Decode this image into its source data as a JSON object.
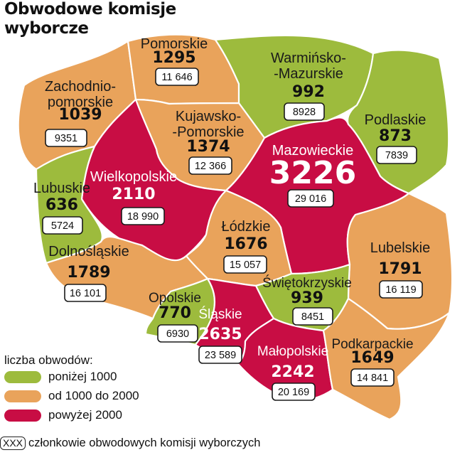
{
  "title_line1": "Obwodowe komisje",
  "title_line2": "wyborcze",
  "colors": {
    "low": "#9dbb3d",
    "mid": "#e9a35b",
    "high": "#c80d44",
    "border": "#ffffff",
    "box_stroke": "#1a1a1a"
  },
  "regions": [
    {
      "id": "zachodniopomorskie",
      "name_lines": [
        "Zachodnio-",
        "pomorskie"
      ],
      "obwody": "1039",
      "komisja": "9351",
      "category": "mid"
    },
    {
      "id": "pomorskie",
      "name_lines": [
        "Pomorskie"
      ],
      "obwody": "1295",
      "komisja": "11 646",
      "category": "mid"
    },
    {
      "id": "warminsko-mazurskie",
      "name_lines": [
        "Warmińsko-",
        "-Mazurskie"
      ],
      "obwody": "992",
      "komisja": "8928",
      "category": "low"
    },
    {
      "id": "podlaskie",
      "name_lines": [
        "Podlaskie"
      ],
      "obwody": "873",
      "komisja": "7839",
      "category": "low"
    },
    {
      "id": "kujawsko-pomorskie",
      "name_lines": [
        "Kujawsko-",
        "-Pomorskie"
      ],
      "obwody": "1374",
      "komisja": "12 366",
      "category": "mid"
    },
    {
      "id": "mazowieckie",
      "name_lines": [
        "Mazowieckie"
      ],
      "obwody": "3226",
      "komisja": "29 016",
      "category": "high"
    },
    {
      "id": "wielkopolskie",
      "name_lines": [
        "Wielkopolskie"
      ],
      "obwody": "2110",
      "komisja": "18 990",
      "category": "high"
    },
    {
      "id": "lubuskie",
      "name_lines": [
        "Lubuskie"
      ],
      "obwody": "636",
      "komisja": "5724",
      "category": "low"
    },
    {
      "id": "lodzkie",
      "name_lines": [
        "Łódzkie"
      ],
      "obwody": "1676",
      "komisja": "15 057",
      "category": "mid"
    },
    {
      "id": "lubelskie",
      "name_lines": [
        "Lubelskie"
      ],
      "obwody": "1791",
      "komisja": "16 119",
      "category": "mid"
    },
    {
      "id": "dolnoslaskie",
      "name_lines": [
        "Dolnośląskie"
      ],
      "obwody": "1789",
      "komisja": "16 101",
      "category": "mid"
    },
    {
      "id": "swietokrzyskie",
      "name_lines": [
        "Świętokrzyskie"
      ],
      "obwody": "939",
      "komisja": "8451",
      "category": "low"
    },
    {
      "id": "opolskie",
      "name_lines": [
        "Opolskie"
      ],
      "obwody": "770",
      "komisja": "6930",
      "category": "low"
    },
    {
      "id": "slaskie",
      "name_lines": [
        "Śląskie"
      ],
      "obwody": "2635",
      "komisja": "23 589",
      "category": "high"
    },
    {
      "id": "malopolskie",
      "name_lines": [
        "Małopolskie"
      ],
      "obwody": "2242",
      "komisja": "20 169",
      "category": "high"
    },
    {
      "id": "podkarpackie",
      "name_lines": [
        "Podkarpackie"
      ],
      "obwody": "1649",
      "komisja": "14 841",
      "category": "mid"
    }
  ],
  "legend": {
    "title": "liczba obwodów:",
    "items": [
      {
        "category": "low",
        "label": "poniżej 1000"
      },
      {
        "category": "mid",
        "label": "od 1000 do 2000"
      },
      {
        "category": "high",
        "label": "powyżej 2000"
      }
    ]
  },
  "footnote": {
    "box_label": "XXX",
    "text": "członkowie obwodowych komisji wyborczych"
  }
}
